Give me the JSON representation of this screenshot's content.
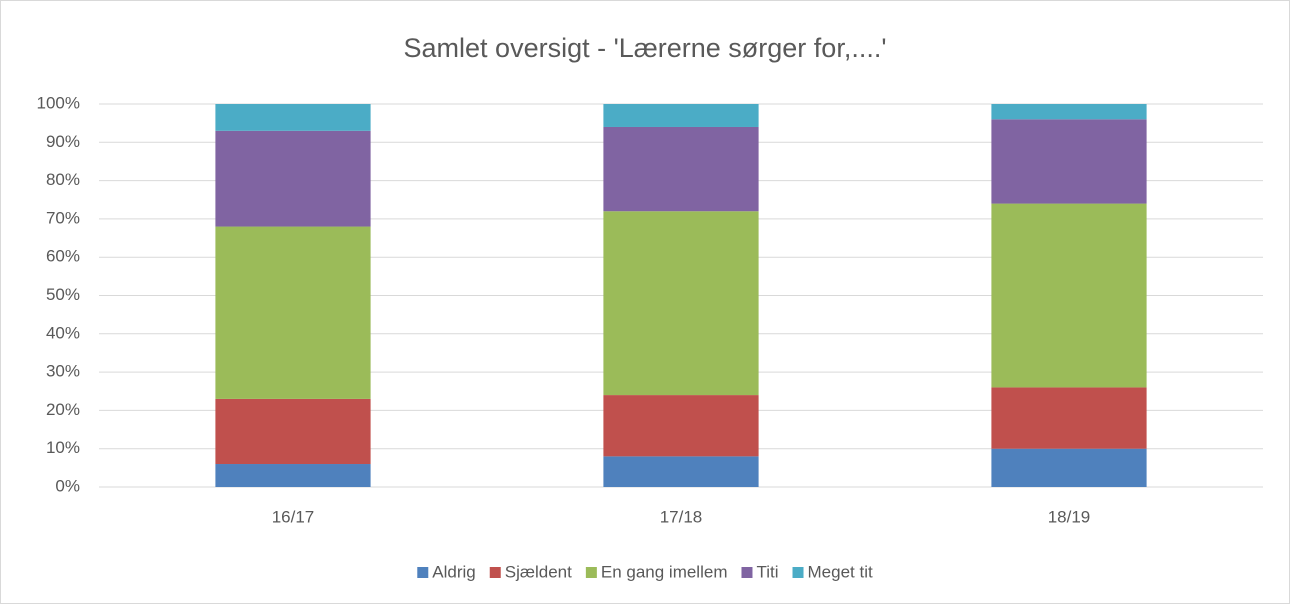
{
  "chart_data": {
    "type": "bar",
    "stacked": true,
    "title": "Samlet oversigt - 'Lærerne sørger for,....'",
    "categories": [
      "16/17",
      "17/18",
      "18/19"
    ],
    "series": [
      {
        "name": "Aldrig",
        "color": "#4f81bd",
        "values": [
          6,
          8,
          10
        ]
      },
      {
        "name": "Sjældent",
        "color": "#c0504d",
        "values": [
          17,
          16,
          16
        ]
      },
      {
        "name": "En gang imellem",
        "color": "#9bbb59",
        "values": [
          45,
          48,
          48
        ]
      },
      {
        "name": "Titi",
        "color": "#8064a2",
        "values": [
          25,
          22,
          22
        ]
      },
      {
        "name": "Meget tit",
        "color": "#4bacc6",
        "values": [
          7,
          6,
          4
        ]
      }
    ],
    "ylim": [
      0,
      100
    ],
    "yticks": [
      {
        "value": 0,
        "label": "0%"
      },
      {
        "value": 10,
        "label": "10%"
      },
      {
        "value": 20,
        "label": "20%"
      },
      {
        "value": 30,
        "label": "30%"
      },
      {
        "value": 40,
        "label": "40%"
      },
      {
        "value": 50,
        "label": "50%"
      },
      {
        "value": 60,
        "label": "60%"
      },
      {
        "value": 70,
        "label": "70%"
      },
      {
        "value": 80,
        "label": "80%"
      },
      {
        "value": 90,
        "label": "90%"
      },
      {
        "value": 100,
        "label": "100%"
      }
    ],
    "grid": true,
    "legend": "bottom"
  }
}
